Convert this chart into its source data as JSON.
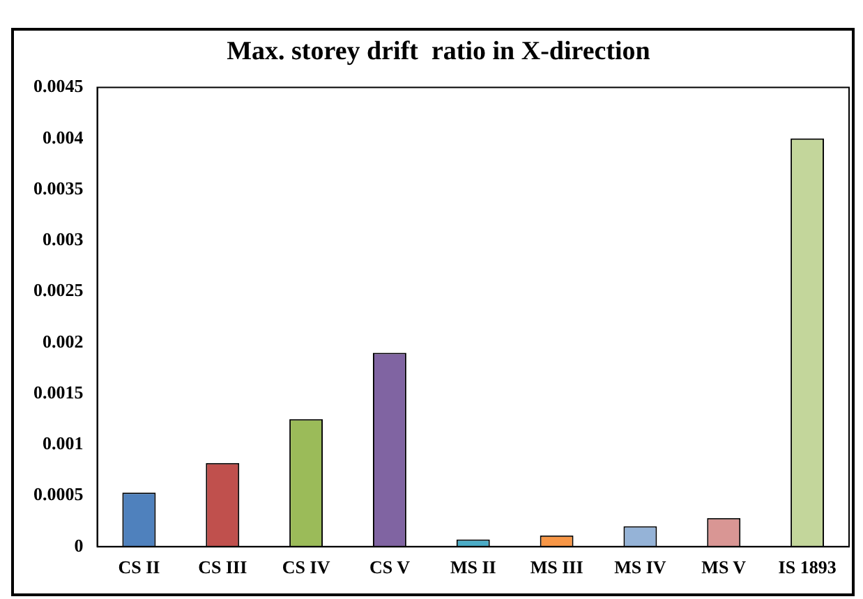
{
  "chart_data": {
    "type": "bar",
    "title": "Max. storey drift  ratio in X-direction",
    "categories": [
      "CS II",
      "CS III",
      "CS IV",
      "CS V",
      "MS II",
      "MS III",
      "MS IV",
      "MS V",
      "IS 1893"
    ],
    "values": [
      0.00053,
      0.00082,
      0.00125,
      0.0019,
      7e-05,
      0.00011,
      0.0002,
      0.00028,
      0.004
    ],
    "colors": [
      "#4f81bd",
      "#c0504d",
      "#9bbb59",
      "#8064a2",
      "#4bacc6",
      "#f79646",
      "#95b3d7",
      "#d99694",
      "#c3d69b"
    ],
    "ylim": [
      0,
      0.0045
    ],
    "yticks": [
      0,
      0.0005,
      0.001,
      0.0015,
      0.002,
      0.0025,
      0.003,
      0.0035,
      0.004,
      0.0045
    ],
    "grid": false,
    "legend": false
  }
}
